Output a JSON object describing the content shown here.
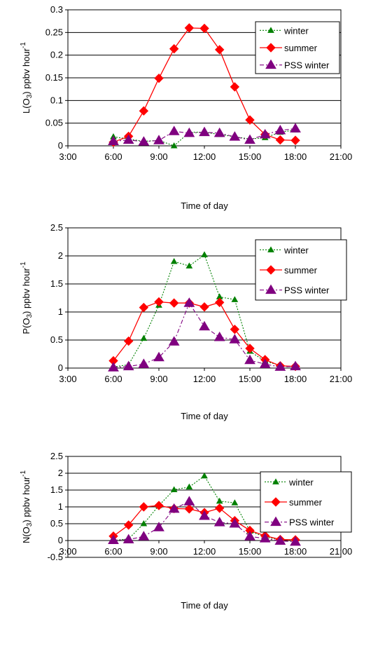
{
  "chart_data": [
    {
      "type": "line",
      "xlabel": "Time of day",
      "ylabel": "L(O3) ppbv hour-1",
      "ylabel_parts": {
        "pre": "L(O",
        "sub": "3",
        "mid": ") ppbv hour",
        "sup": "-1"
      },
      "xlim": [
        "3:00",
        "21:00"
      ],
      "xticks": [
        "3:00",
        "6:00",
        "9:00",
        "12:00",
        "15:00",
        "18:00",
        "21:00"
      ],
      "ylim": [
        0,
        0.3
      ],
      "yticks": [
        "0",
        "0.05",
        "0.1",
        "0.15",
        "0.2",
        "0.25",
        "0.3"
      ],
      "grid": true,
      "legend_position": "top-right",
      "x": [
        "6:00",
        "7:00",
        "8:00",
        "9:00",
        "10:00",
        "11:00",
        "12:00",
        "13:00",
        "14:00",
        "15:00",
        "16:00",
        "17:00",
        "18:00"
      ],
      "series": [
        {
          "name": "winter",
          "color": "#008000",
          "style": "dotted",
          "marker": "small-triangle",
          "values": [
            0.02,
            0.015,
            0.01,
            0.012,
            0.0,
            0.03,
            0.03,
            0.025,
            0.02,
            0.015,
            0.018,
            0.03,
            0.035
          ]
        },
        {
          "name": "summer",
          "color": "#ff0000",
          "style": "solid",
          "marker": "diamond",
          "values": [
            0.008,
            0.021,
            0.077,
            0.149,
            0.214,
            0.26,
            0.259,
            0.212,
            0.13,
            0.057,
            0.025,
            0.013,
            0.012
          ]
        },
        {
          "name": "PSS winter",
          "color": "#800080",
          "style": "dashdot",
          "marker": "triangle",
          "values": [
            0.01,
            0.013,
            0.009,
            0.012,
            0.032,
            0.028,
            0.03,
            0.028,
            0.02,
            0.013,
            0.025,
            0.034,
            0.038
          ]
        }
      ]
    },
    {
      "type": "line",
      "xlabel": "Time of day",
      "ylabel": "P(O3) ppbv hour-1",
      "ylabel_parts": {
        "pre": "P(O",
        "sub": "3",
        "mid": ") ppbv hour",
        "sup": "-1"
      },
      "xlim": [
        "3:00",
        "21:00"
      ],
      "xticks": [
        "3:00",
        "6:00",
        "9:00",
        "12:00",
        "15:00",
        "18:00",
        "21:00"
      ],
      "ylim": [
        0,
        2.5
      ],
      "yticks": [
        "0",
        "0.5",
        "1",
        "1.5",
        "2",
        "2.5"
      ],
      "grid": true,
      "legend_position": "top-right",
      "x": [
        "6:00",
        "7:00",
        "8:00",
        "9:00",
        "10:00",
        "11:00",
        "12:00",
        "13:00",
        "14:00",
        "15:00",
        "16:00",
        "17:00",
        "18:00"
      ],
      "series": [
        {
          "name": "winter",
          "color": "#008000",
          "style": "dotted",
          "marker": "small-triangle",
          "values": [
            0.02,
            0.06,
            0.53,
            1.12,
            1.9,
            1.82,
            2.02,
            1.27,
            1.22,
            0.3,
            0.12,
            0.05,
            0.02
          ]
        },
        {
          "name": "summer",
          "color": "#ff0000",
          "style": "solid",
          "marker": "diamond",
          "values": [
            0.13,
            0.48,
            1.08,
            1.18,
            1.16,
            1.16,
            1.09,
            1.17,
            0.69,
            0.35,
            0.15,
            0.04,
            0.03
          ]
        },
        {
          "name": "PSS winter",
          "color": "#800080",
          "style": "dashdot",
          "marker": "triangle",
          "values": [
            0.01,
            0.03,
            0.07,
            0.19,
            0.47,
            1.16,
            0.74,
            0.55,
            0.51,
            0.14,
            0.07,
            0.02,
            0.03
          ]
        }
      ]
    },
    {
      "type": "line",
      "xlabel": "Time of day",
      "ylabel": "N(O3) ppbv hour-1",
      "ylabel_parts": {
        "pre": "N(O",
        "sub": "3",
        "mid": ") ppbv hour",
        "sup": "-1"
      },
      "xlim": [
        "3:00",
        "21:00"
      ],
      "xticks": [
        "3:00",
        "6:00",
        "9:00",
        "12:00",
        "15:00",
        "18:00",
        "21:00"
      ],
      "ylim": [
        -0.5,
        2.5
      ],
      "yticks": [
        "-0.5",
        "0",
        "0.5",
        "1",
        "1.5",
        "2",
        "2.5"
      ],
      "grid": true,
      "legend_position": "top-right",
      "x": [
        "6:00",
        "7:00",
        "8:00",
        "9:00",
        "10:00",
        "11:00",
        "12:00",
        "13:00",
        "14:00",
        "15:00",
        "16:00",
        "17:00",
        "18:00"
      ],
      "series": [
        {
          "name": "winter",
          "color": "#008000",
          "style": "dotted",
          "marker": "small-triangle",
          "values": [
            0.0,
            0.05,
            0.5,
            1.04,
            1.51,
            1.59,
            1.92,
            1.17,
            1.12,
            0.28,
            0.1,
            0.03,
            0.0
          ]
        },
        {
          "name": "summer",
          "color": "#ff0000",
          "style": "solid",
          "marker": "diamond",
          "values": [
            0.13,
            0.46,
            1.0,
            1.04,
            0.95,
            0.94,
            0.83,
            0.96,
            0.59,
            0.3,
            0.14,
            0.03,
            0.02
          ]
        },
        {
          "name": "PSS winter",
          "color": "#800080",
          "style": "dashdot",
          "marker": "triangle",
          "values": [
            0.01,
            0.03,
            0.12,
            0.39,
            0.94,
            1.16,
            0.73,
            0.54,
            0.5,
            0.12,
            0.06,
            -0.01,
            -0.04
          ]
        }
      ]
    }
  ]
}
